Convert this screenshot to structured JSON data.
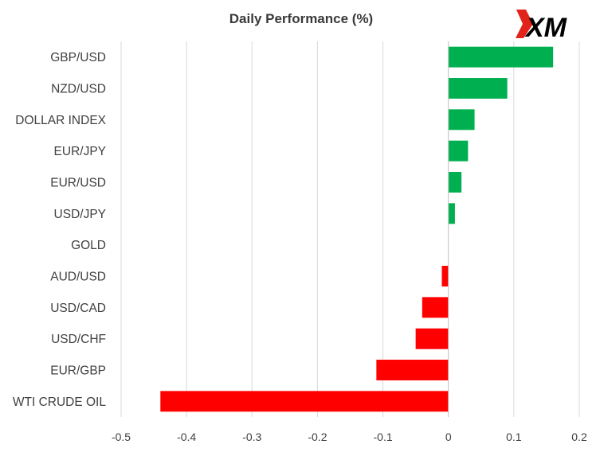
{
  "chart_data": {
    "type": "bar",
    "orientation": "horizontal",
    "title": "Daily Performance  (%)",
    "xlabel": "",
    "ylabel": "",
    "categories": [
      "GBP/USD",
      "NZD/USD",
      "DOLLAR INDEX",
      "EUR/JPY",
      "EUR/USD",
      "USD/JPY",
      "GOLD",
      "AUD/USD",
      "USD/CAD",
      "USD/CHF",
      "EUR/GBP",
      "WTI CRUDE OIL"
    ],
    "values": [
      0.16,
      0.09,
      0.04,
      0.03,
      0.02,
      0.01,
      0.0,
      -0.01,
      -0.04,
      -0.05,
      -0.11,
      -0.44
    ],
    "xlim": [
      -0.5,
      0.2
    ],
    "xticks": [
      -0.5,
      -0.4,
      -0.3,
      -0.2,
      -0.1,
      0,
      0.1,
      0.2
    ],
    "xtick_labels": [
      "-0.5",
      "-0.4",
      "-0.3",
      "-0.2",
      "-0.1",
      "0",
      "0.1",
      "0.2"
    ],
    "grid": "vertical",
    "legend": "none",
    "colors": {
      "positive": "#00b050",
      "negative": "#ff0000",
      "grid": "#d9d9d9",
      "axis": "#bfbfbf"
    }
  },
  "logo": {
    "text": "XM",
    "accent_color": "#e2231a"
  }
}
